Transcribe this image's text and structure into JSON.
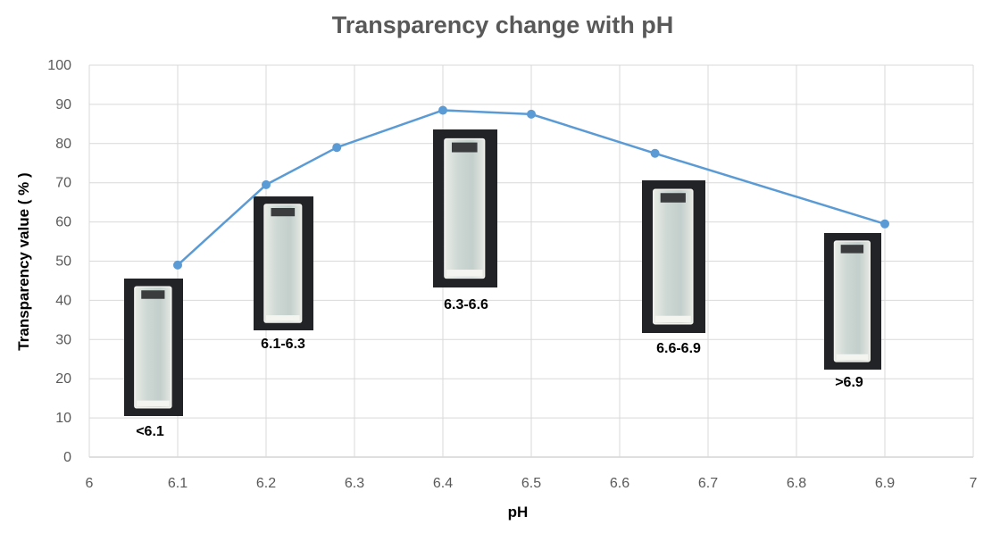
{
  "chart_data": {
    "type": "line",
    "title": "Transparency change with pH",
    "xlabel": "pH",
    "ylabel": "Transparency value ( % )",
    "xlim": [
      6,
      7
    ],
    "ylim": [
      0,
      100
    ],
    "x_ticks": [
      "6",
      "6.1",
      "6.2",
      "6.3",
      "6.4",
      "6.5",
      "6.6",
      "6.7",
      "6.8",
      "6.9",
      "7"
    ],
    "y_ticks": [
      "0",
      "10",
      "20",
      "30",
      "40",
      "50",
      "60",
      "70",
      "80",
      "90",
      "100"
    ],
    "grid": true,
    "series": [
      {
        "color": "#5B9BD5",
        "points": [
          {
            "x": 6.1,
            "y": 49
          },
          {
            "x": 6.2,
            "y": 69.5
          },
          {
            "x": 6.28,
            "y": 79
          },
          {
            "x": 6.4,
            "y": 88.5
          },
          {
            "x": 6.5,
            "y": 87.5
          },
          {
            "x": 6.64,
            "y": 77.5
          },
          {
            "x": 6.9,
            "y": 59.5
          }
        ]
      }
    ],
    "annotations": [
      {
        "label": "<6.1"
      },
      {
        "label": "6.1-6.3"
      },
      {
        "label": "6.3-6.6"
      },
      {
        "label": "6.6-6.9"
      },
      {
        "label": ">6.9"
      }
    ]
  }
}
